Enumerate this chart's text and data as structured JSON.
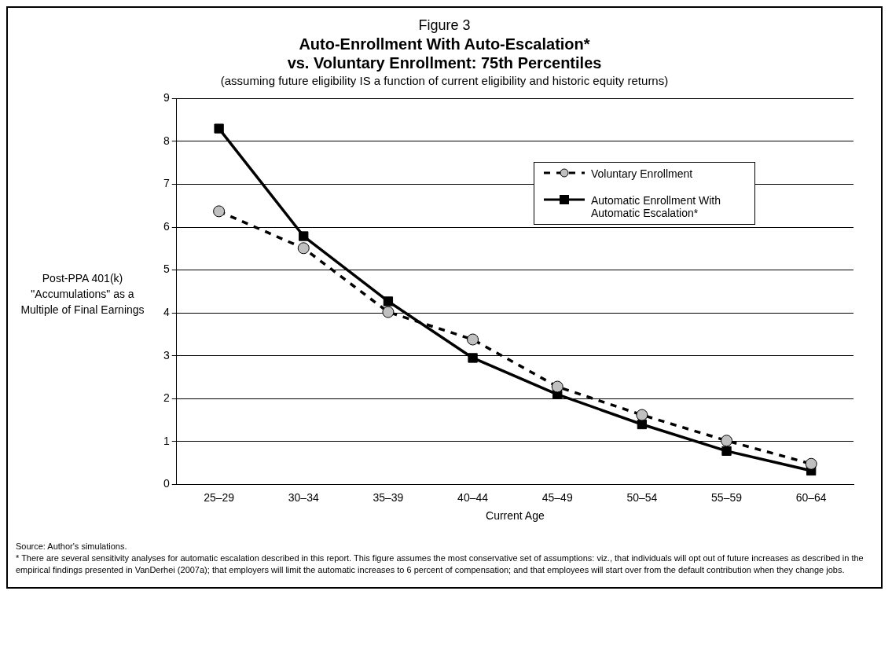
{
  "chart_data": {
    "type": "line",
    "title": "Figure 3\nAuto-Enrollment With Auto-Escalation*\nvs. Voluntary Enrollment: 75th Percentiles",
    "subtitle": "(assuming future eligibility IS a function of current eligibility and historic equity returns)",
    "xlabel": "Current Age",
    "ylabel": "Post-PPA 401(k)\n\"Accumulations\" as a\nMultiple of Final Earnings",
    "categories": [
      "25–29",
      "30–34",
      "35–39",
      "40–44",
      "45–49",
      "50–54",
      "55–59",
      "60–64"
    ],
    "series": [
      {
        "name": "Voluntary Enrollment",
        "color": "#000000",
        "marker": "circle",
        "line_style": "dashed",
        "values": [
          6.37,
          5.51,
          4.02,
          3.38,
          2.28,
          1.62,
          1.02,
          0.48
        ]
      },
      {
        "name": "Automatic Enrollment With Automatic Escalation*",
        "color": "#000000",
        "marker": "square",
        "line_style": "solid",
        "values": [
          8.3,
          5.79,
          4.27,
          2.95,
          2.1,
          1.4,
          0.78,
          0.32
        ]
      }
    ],
    "ylim": [
      0,
      9
    ],
    "yticks": [
      0,
      1,
      2,
      3,
      4,
      5,
      6,
      7,
      8,
      9
    ],
    "grid": "y",
    "legend": "top right",
    "annotations": [
      "Source: Author's simulations.",
      "* There are several sensitivity analyses for automatic escalation described in this report. This figure assumes the most conservative set of assumptions: viz., that individuals will opt out of future increases as described in the empirical findings presented in VanDerhei (2007a); that employers will limit the automatic increases to 6 percent of compensation; and that employees will start over from the default contribution when they change jobs."
    ]
  }
}
